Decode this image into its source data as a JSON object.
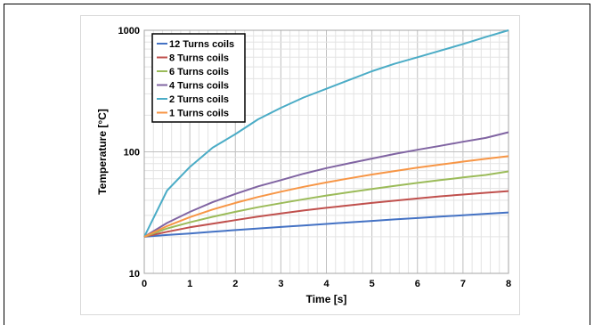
{
  "chart_data": {
    "type": "line",
    "xlabel": "Time [s]",
    "ylabel": "Temperature [°C]",
    "xlim": [
      0,
      8
    ],
    "ylim": [
      10,
      1000
    ],
    "yscale": "log",
    "x_ticks": [
      "0",
      "1",
      "2",
      "3",
      "4",
      "5",
      "6",
      "7",
      "8"
    ],
    "y_ticks": [
      "10",
      "100",
      "1000"
    ],
    "grid": true,
    "legend_position": "top-left",
    "x": [
      0,
      0.5,
      1,
      1.5,
      2,
      2.5,
      3,
      3.5,
      4,
      4.5,
      5,
      5.5,
      6,
      6.5,
      7,
      7.5,
      8
    ],
    "series": [
      {
        "name": "12 Turns coils",
        "color": "#4472c4",
        "values": [
          20,
          20.7,
          21.3,
          22.0,
          22.7,
          23.4,
          24.1,
          24.8,
          25.5,
          26.3,
          27.0,
          27.8,
          28.5,
          29.3,
          30.1,
          30.9,
          31.7
        ]
      },
      {
        "name": "8 Turns coils",
        "color": "#c0504d",
        "values": [
          20,
          22.0,
          23.9,
          25.6,
          27.4,
          29.3,
          31.1,
          32.9,
          34.6,
          36.3,
          38.0,
          39.6,
          41.3,
          43.0,
          44.5,
          46.0,
          47.5
        ]
      },
      {
        "name": "6 Turns coils",
        "color": "#9bbb59",
        "values": [
          20,
          23.4,
          26.3,
          29.2,
          32.1,
          35.0,
          37.8,
          40.7,
          43.7,
          46.5,
          49.5,
          52.5,
          55.5,
          58.5,
          61.5,
          64.5,
          69.0
        ]
      },
      {
        "name": "4 Turns coils",
        "color": "#8064a2",
        "values": [
          20,
          26.0,
          32.0,
          38.5,
          45.0,
          52.0,
          58.5,
          66.0,
          73.5,
          80.5,
          88.0,
          96.0,
          104.0,
          112.0,
          121.0,
          130.0,
          145.0
        ]
      },
      {
        "name": "2 Turns coils",
        "color": "#4bacc6",
        "values": [
          20,
          48,
          75,
          108,
          140,
          185,
          230,
          280,
          330,
          390,
          460,
          530,
          600,
          680,
          770,
          880,
          1000
        ]
      },
      {
        "name": "1 Turns coils",
        "color": "#f79646",
        "values": [
          20,
          24.5,
          29.0,
          33.5,
          38.0,
          42.5,
          47.0,
          51.5,
          56.0,
          60.5,
          65.0,
          69.5,
          74.0,
          78.5,
          83.0,
          87.5,
          92.0
        ]
      }
    ]
  }
}
